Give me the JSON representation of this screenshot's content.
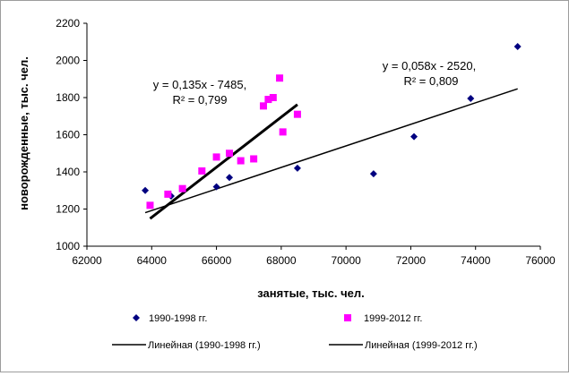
{
  "chart_data": {
    "type": "scatter",
    "xlabel": "занятые, тыс. чел.",
    "ylabel": "новорожденные, тыс. чел.",
    "xlim": [
      62000,
      76000
    ],
    "ylim": [
      1000,
      2200
    ],
    "xticks": [
      "62000",
      "64000",
      "66000",
      "68000",
      "70000",
      "72000",
      "74000",
      "76000"
    ],
    "yticks": [
      "1000",
      "1200",
      "1400",
      "1600",
      "1800",
      "2000",
      "2200"
    ],
    "grid": false,
    "legend_position": "bottom",
    "series": [
      {
        "name": "1990-1998 гг.",
        "marker": "diamond",
        "color": "#000080",
        "points": [
          {
            "x": 63800,
            "y": 1300
          },
          {
            "x": 64600,
            "y": 1270
          },
          {
            "x": 66000,
            "y": 1320
          },
          {
            "x": 66400,
            "y": 1370
          },
          {
            "x": 68500,
            "y": 1420
          },
          {
            "x": 70850,
            "y": 1390
          },
          {
            "x": 72100,
            "y": 1590
          },
          {
            "x": 73850,
            "y": 1795
          },
          {
            "x": 75300,
            "y": 2075
          }
        ]
      },
      {
        "name": "1999-2012 гг.",
        "marker": "square",
        "color": "#ff00ff",
        "points": [
          {
            "x": 63950,
            "y": 1220
          },
          {
            "x": 64500,
            "y": 1280
          },
          {
            "x": 64950,
            "y": 1310
          },
          {
            "x": 65550,
            "y": 1405
          },
          {
            "x": 66000,
            "y": 1480
          },
          {
            "x": 66400,
            "y": 1500
          },
          {
            "x": 66750,
            "y": 1460
          },
          {
            "x": 67150,
            "y": 1470
          },
          {
            "x": 67450,
            "y": 1755
          },
          {
            "x": 67600,
            "y": 1790
          },
          {
            "x": 67750,
            "y": 1800
          },
          {
            "x": 67950,
            "y": 1905
          },
          {
            "x": 68050,
            "y": 1615
          },
          {
            "x": 68500,
            "y": 1710
          }
        ]
      }
    ],
    "trendlines": [
      {
        "name": "Линейная (1990-1998 гг.)",
        "slope": 0.058,
        "intercept": -2520,
        "x_range": [
          63800,
          75300
        ],
        "color": "#000000",
        "width": "thin",
        "equation": "y = 0,058x - 2520,",
        "r2": "R² = 0,809"
      },
      {
        "name": "Линейная (1999-2012 гг.)",
        "slope": 0.135,
        "intercept": -7485,
        "x_range": [
          63950,
          68500
        ],
        "color": "#000000",
        "width": "thick",
        "equation": "y = 0,135x - 7485,",
        "r2": "R² = 0,799"
      }
    ]
  }
}
